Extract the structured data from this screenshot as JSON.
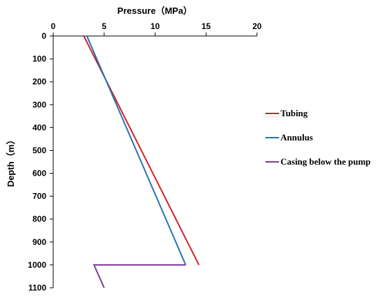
{
  "chart_data": {
    "type": "line",
    "xlabel": "Pressure（MPa）",
    "ylabel": "Depth（m）",
    "xlim": [
      0,
      20
    ],
    "ylim": [
      0,
      1100
    ],
    "y_inverted": true,
    "x_axis_position": "top",
    "x_ticks": [
      0,
      5,
      10,
      15,
      20
    ],
    "y_ticks": [
      0,
      100,
      200,
      300,
      400,
      500,
      600,
      700,
      800,
      900,
      1000,
      1100
    ],
    "grid": false,
    "legend_position": "right",
    "series": [
      {
        "name": "Tubing",
        "color": "#d0202a",
        "points": [
          [
            3.0,
            0
          ],
          [
            14.3,
            1000
          ]
        ]
      },
      {
        "name": "Annulus",
        "color": "#2472b5",
        "points": [
          [
            3.3,
            0
          ],
          [
            13.0,
            1000
          ]
        ]
      },
      {
        "name": "Casing below the pump",
        "color": "#7b3a9a",
        "points": [
          [
            13.0,
            1000
          ],
          [
            4.0,
            1000
          ],
          [
            5.0,
            1100
          ]
        ]
      }
    ]
  }
}
